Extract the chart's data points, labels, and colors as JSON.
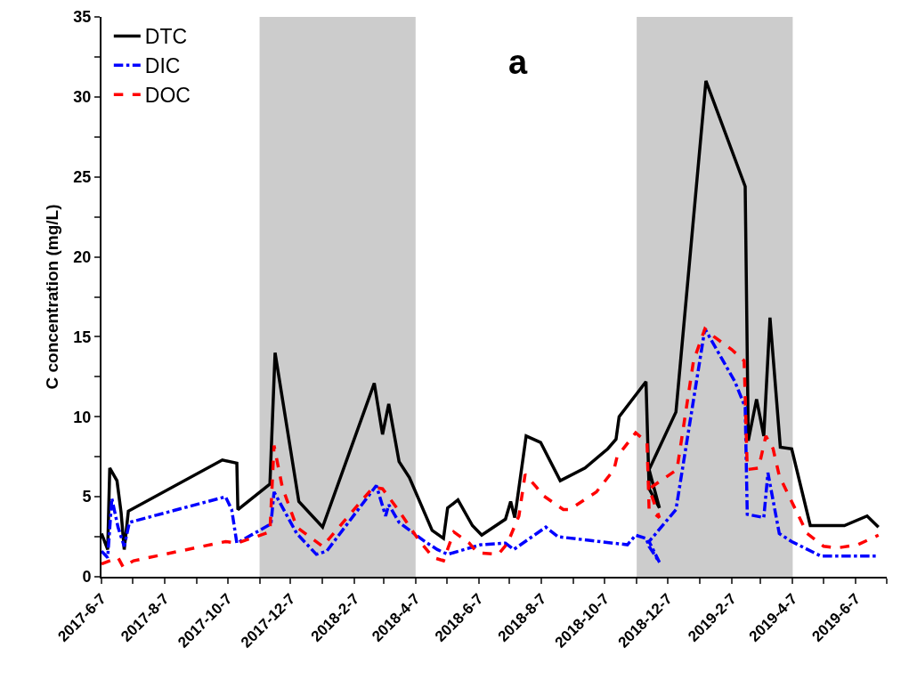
{
  "chart_data": {
    "type": "line",
    "title": "a",
    "ylabel": "C concentration (mg/L)",
    "series": [
      {
        "name": "DTC",
        "color": "#000000",
        "line_style": "solid",
        "x": [
          "2017-06-07",
          "2017-06-13",
          "2017-06-15",
          "2017-06-22",
          "2017-06-26",
          "2017-06-29",
          "2017-07-03",
          "2017-10-02",
          "2017-10-16",
          "2017-10-17",
          "2017-11-17",
          "2017-11-22",
          "2017-12-15",
          "2018-01-07",
          "2018-02-26",
          "2018-03-06",
          "2018-03-12",
          "2018-03-22",
          "2018-04-01",
          "2018-04-23",
          "2018-05-04",
          "2018-05-08",
          "2018-05-18",
          "2018-06-01",
          "2018-06-10",
          "2018-07-03",
          "2018-07-08",
          "2018-07-12",
          "2018-07-23",
          "2018-08-06",
          "2018-08-25",
          "2018-09-18",
          "2018-10-10",
          "2018-10-18",
          "2018-10-21",
          "2018-11-16",
          "2018-11-19",
          "2018-11-29",
          "2018-11-19",
          "2018-12-15",
          "2019-01-13",
          "2019-02-20",
          "2019-02-23",
          "2019-03-03",
          "2019-03-10",
          "2019-03-16",
          "2019-03-26",
          "2019-04-06",
          "2019-04-24",
          "2019-05-27",
          "2019-06-18",
          "2019-06-29"
        ],
        "values": [
          2.7,
          1.7,
          6.8,
          6.0,
          4.0,
          1.7,
          4.1,
          7.3,
          7.1,
          4.2,
          5.8,
          14.0,
          4.7,
          3.1,
          12.1,
          8.9,
          10.8,
          7.2,
          6.2,
          2.9,
          2.4,
          4.3,
          4.8,
          3.2,
          2.6,
          3.6,
          4.7,
          3.7,
          8.8,
          8.4,
          6.0,
          6.8,
          8.0,
          8.6,
          10.0,
          12.2,
          5.5,
          4.3,
          6.7,
          10.3,
          31.0,
          24.4,
          8.5,
          11.1,
          8.8,
          16.2,
          8.1,
          8.0,
          3.2,
          3.2,
          3.8,
          3.1
        ]
      },
      {
        "name": "DIC",
        "color": "#0000ff",
        "line_style": "dashdot",
        "x": [
          "2017-06-07",
          "2017-06-13",
          "2017-06-17",
          "2017-06-23",
          "2017-06-29",
          "2017-07-04",
          "2017-10-05",
          "2017-10-11",
          "2017-10-16",
          "2017-11-18",
          "2017-11-21",
          "2017-12-13",
          "2018-01-01",
          "2018-01-11",
          "2018-02-28",
          "2018-03-09",
          "2018-03-12",
          "2018-03-22",
          "2018-04-16",
          "2018-04-28",
          "2018-05-08",
          "2018-06-09",
          "2018-07-03",
          "2018-07-11",
          "2018-08-11",
          "2018-08-23",
          "2018-10-29",
          "2018-11-06",
          "2018-11-16",
          "2018-11-19",
          "2018-11-29",
          "2018-11-19",
          "2018-12-15",
          "2019-01-12",
          "2019-02-10",
          "2019-02-20",
          "2019-02-22",
          "2019-03-10",
          "2019-03-14",
          "2019-03-25",
          "2019-04-06",
          "2019-05-04",
          "2019-06-29"
        ],
        "values": [
          1.6,
          1.2,
          4.9,
          3.1,
          1.9,
          3.4,
          5.0,
          4.2,
          2.1,
          3.3,
          5.3,
          2.7,
          1.4,
          1.6,
          5.7,
          3.8,
          4.5,
          3.4,
          2.2,
          1.7,
          1.4,
          2.0,
          2.1,
          1.7,
          3.1,
          2.5,
          2.0,
          2.6,
          2.4,
          1.9,
          0.9,
          2.2,
          4.2,
          15.5,
          12.2,
          10.6,
          3.9,
          3.7,
          6.5,
          2.7,
          2.2,
          1.3,
          1.3
        ]
      },
      {
        "name": "DOC",
        "color": "#ff0000",
        "line_style": "dashed",
        "x": [
          "2017-06-07",
          "2017-06-23",
          "2017-06-28",
          "2017-07-08",
          "2017-10-05",
          "2017-10-16",
          "2017-11-17",
          "2017-11-21",
          "2017-11-29",
          "2017-12-13",
          "2018-01-07",
          "2018-02-25",
          "2018-03-06",
          "2018-03-21",
          "2018-04-10",
          "2018-04-24",
          "2018-05-04",
          "2018-05-14",
          "2018-05-29",
          "2018-06-06",
          "2018-06-26",
          "2018-07-05",
          "2018-07-16",
          "2018-07-22",
          "2018-08-02",
          "2018-08-08",
          "2018-08-28",
          "2018-09-03",
          "2018-09-29",
          "2018-10-16",
          "2018-10-19",
          "2018-11-06",
          "2018-11-17",
          "2018-11-19",
          "2018-11-29",
          "2018-11-19",
          "2018-12-16",
          "2019-01-01",
          "2019-01-12",
          "2019-01-21",
          "2019-02-07",
          "2019-02-19",
          "2019-02-22",
          "2019-03-05",
          "2019-03-12",
          "2019-03-19",
          "2019-03-25",
          "2019-04-21",
          "2019-05-07",
          "2019-05-20",
          "2019-06-09",
          "2019-06-29"
        ],
        "values": [
          0.8,
          1.2,
          0.6,
          1.0,
          2.2,
          2.1,
          2.8,
          8.2,
          5.6,
          3.1,
          1.9,
          5.6,
          5.5,
          4.2,
          2.3,
          1.2,
          1.0,
          2.8,
          2.1,
          1.5,
          1.4,
          2.1,
          3.8,
          6.4,
          5.6,
          5.1,
          4.2,
          4.2,
          5.3,
          6.7,
          7.5,
          9.0,
          8.4,
          4.2,
          3.7,
          5.5,
          6.7,
          13.5,
          15.5,
          15.0,
          14.2,
          13.5,
          6.7,
          6.8,
          8.8,
          8.0,
          6.3,
          2.7,
          1.9,
          1.8,
          2.0,
          2.6
        ]
      }
    ],
    "bands": [
      {
        "axis": "x",
        "from": "2017-11-07",
        "to": "2018-04-07",
        "color": "#cccccc"
      },
      {
        "axis": "x",
        "from": "2018-11-07",
        "to": "2019-04-07",
        "color": "#cccccc"
      }
    ],
    "xlim": [
      "2017-06-07",
      "2019-07-07"
    ],
    "xticks": [
      {
        "value": "2017-06-07",
        "label": "2017-6-7"
      },
      {
        "value": "2017-07-07",
        "label": null
      },
      {
        "value": "2017-08-07",
        "label": "2017-8-7"
      },
      {
        "value": "2017-09-07",
        "label": null
      },
      {
        "value": "2017-10-07",
        "label": "2017-10-7"
      },
      {
        "value": "2017-11-07",
        "label": null
      },
      {
        "value": "2017-12-07",
        "label": "2017-12-7"
      },
      {
        "value": "2018-01-07",
        "label": null
      },
      {
        "value": "2018-02-07",
        "label": "2018-2-7"
      },
      {
        "value": "2018-03-07",
        "label": null
      },
      {
        "value": "2018-04-07",
        "label": "2018-4-7"
      },
      {
        "value": "2018-05-07",
        "label": null
      },
      {
        "value": "2018-06-07",
        "label": "2018-6-7"
      },
      {
        "value": "2018-07-07",
        "label": null
      },
      {
        "value": "2018-08-07",
        "label": "2018-8-7"
      },
      {
        "value": "2018-09-07",
        "label": null
      },
      {
        "value": "2018-10-07",
        "label": "2018-10-7"
      },
      {
        "value": "2018-11-07",
        "label": null
      },
      {
        "value": "2018-12-07",
        "label": "2018-12-7"
      },
      {
        "value": "2019-01-07",
        "label": null
      },
      {
        "value": "2019-02-07",
        "label": "2019-2-7"
      },
      {
        "value": "2019-03-07",
        "label": null
      },
      {
        "value": "2019-04-07",
        "label": "2019-4-7"
      },
      {
        "value": "2019-05-07",
        "label": null
      },
      {
        "value": "2019-06-07",
        "label": "2019-6-7"
      },
      {
        "value": "2019-07-07",
        "label": null
      }
    ],
    "ylim": [
      0,
      35
    ],
    "yticks": [
      0,
      {
        "value": 2.5,
        "label": null
      },
      5,
      {
        "value": 7.5,
        "label": null
      },
      10,
      {
        "value": 12.5,
        "label": null
      },
      15,
      {
        "value": 17.5,
        "label": null
      },
      20,
      {
        "value": 22.5,
        "label": null
      },
      25,
      {
        "value": 27.5,
        "label": null
      },
      30,
      {
        "value": 32.5,
        "label": null
      },
      35
    ],
    "grid": false,
    "legend": "top left",
    "marker": "none"
  }
}
